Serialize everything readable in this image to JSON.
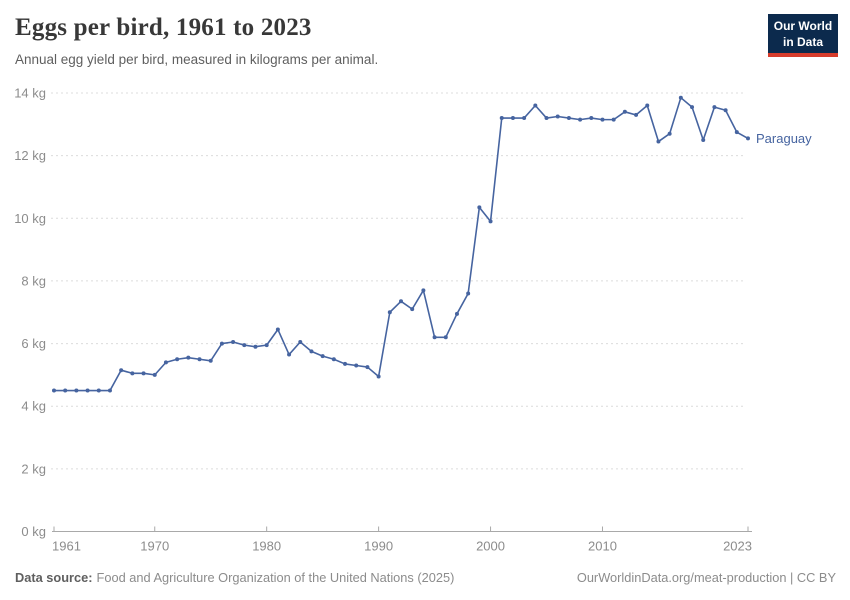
{
  "header": {
    "title": "Eggs per bird, 1961 to 2023",
    "subtitle": "Annual egg yield per bird, measured in kilograms per animal."
  },
  "logo": {
    "line1": "Our World",
    "line2": "in Data",
    "bg_color": "#0c2a4d",
    "accent_color": "#d73c2c"
  },
  "footer": {
    "source_label": "Data source:",
    "source_text": "Food and Agriculture Organization of the United Nations (2025)",
    "link_text": "OurWorldinData.org/meat-production | CC BY"
  },
  "chart_data": {
    "type": "line",
    "title": "Eggs per bird, 1961 to 2023",
    "xlabel": "",
    "ylabel": "kg",
    "xlim": [
      1961,
      2023
    ],
    "ylim": [
      0,
      14
    ],
    "x_ticks": [
      1961,
      1970,
      1980,
      1990,
      2000,
      2010,
      2023
    ],
    "y_ticks": [
      0,
      2,
      4,
      6,
      8,
      10,
      12,
      14
    ],
    "y_tick_suffix": " kg",
    "grid": "horizontal-dashed",
    "legend": "end-of-line-label",
    "line_color": "#4664a0",
    "series": [
      {
        "name": "Paraguay",
        "color": "#4664a0",
        "x": [
          1961,
          1962,
          1963,
          1964,
          1965,
          1966,
          1967,
          1968,
          1969,
          1970,
          1971,
          1972,
          1973,
          1974,
          1975,
          1976,
          1977,
          1978,
          1979,
          1980,
          1981,
          1982,
          1983,
          1984,
          1985,
          1986,
          1987,
          1988,
          1989,
          1990,
          1991,
          1992,
          1993,
          1994,
          1995,
          1996,
          1997,
          1998,
          1999,
          2000,
          2001,
          2002,
          2003,
          2004,
          2005,
          2006,
          2007,
          2008,
          2009,
          2010,
          2011,
          2012,
          2013,
          2014,
          2015,
          2016,
          2017,
          2018,
          2019,
          2020,
          2021,
          2022,
          2023
        ],
        "values": [
          4.5,
          4.5,
          4.5,
          4.5,
          4.5,
          4.5,
          5.15,
          5.05,
          5.05,
          5.0,
          5.4,
          5.5,
          5.55,
          5.5,
          5.45,
          6.0,
          6.05,
          5.95,
          5.9,
          5.95,
          6.45,
          5.65,
          6.05,
          5.75,
          5.6,
          5.5,
          5.35,
          5.3,
          5.25,
          4.95,
          7.0,
          7.35,
          7.1,
          7.7,
          6.2,
          6.2,
          6.95,
          7.6,
          10.35,
          9.9,
          13.2,
          13.2,
          13.2,
          13.6,
          13.2,
          13.25,
          13.2,
          13.15,
          13.2,
          13.15,
          13.15,
          13.4,
          13.3,
          13.6,
          12.45,
          12.7,
          13.85,
          13.55,
          12.5,
          13.55,
          13.45,
          12.75,
          12.55
        ]
      }
    ]
  }
}
